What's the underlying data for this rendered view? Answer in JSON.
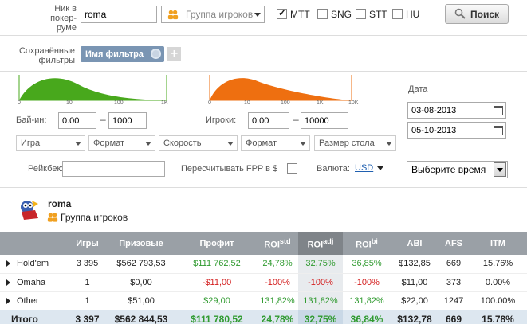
{
  "filters": {
    "nick_label": "Ник в покер-руме",
    "nick_value": "roma",
    "group_placeholder": "Группа игроков",
    "checkboxes": [
      {
        "label": "MTT",
        "checked": true
      },
      {
        "label": "SNG",
        "checked": false
      },
      {
        "label": "STT",
        "checked": false
      },
      {
        "label": "HU",
        "checked": false
      }
    ],
    "search_label": "Поиск"
  },
  "saved": {
    "label": "Сохранённые фильтры",
    "tag": "Имя фильтра",
    "add": "+"
  },
  "buyin": {
    "ticks": [
      "0",
      "10",
      "100",
      "1K"
    ],
    "label": "Бай-ин:",
    "from": "0.00",
    "to": "1000",
    "color": "#48a81c"
  },
  "players": {
    "ticks": [
      "0",
      "10",
      "100",
      "1K",
      "10K"
    ],
    "label": "Игроки:",
    "from": "0.00",
    "to": "10000",
    "color": "#ee6f10"
  },
  "dropdowns": [
    "Игра",
    "Формат",
    "Скорость",
    "Формат",
    "Размер стола"
  ],
  "rakeback_label": "Рейкбек:",
  "fpp_label": "Пересчитывать FPP в $",
  "currency_label": "Валюта:",
  "currency_value": "USD",
  "date": {
    "label": "Дата",
    "from": "03-08-2013",
    "to": "05-10-2013",
    "time_select": "Выберите время"
  },
  "player": {
    "name": "roma",
    "group": "Группа игроков"
  },
  "table": {
    "headers": [
      "",
      "Игры",
      "Призовые",
      "Профит",
      "ROIstd",
      "ROIadj",
      "ROIbi",
      "ABI",
      "AFS",
      "ITM"
    ],
    "header_main": [
      "",
      "Игры",
      "Призовые",
      "Профит",
      "ROI",
      "ROI",
      "ROI",
      "ABI",
      "AFS",
      "ITM"
    ],
    "header_sup": [
      "",
      "",
      "",
      "",
      "std",
      "adj",
      "bi",
      "",
      "",
      ""
    ],
    "rows": [
      {
        "name": "Hold'em",
        "games": "3 395",
        "prize": "$562 793,53",
        "profit": "$111 762,52",
        "roistd": "24,78%",
        "roiadj": "32,75%",
        "roibi": "36,85%",
        "abi": "$132,85",
        "afs": "669",
        "itm": "15.76%",
        "sign": "pos"
      },
      {
        "name": "Omaha",
        "games": "1",
        "prize": "$0,00",
        "profit": "-$11,00",
        "roistd": "-100%",
        "roiadj": "-100%",
        "roibi": "-100%",
        "abi": "$11,00",
        "afs": "373",
        "itm": "0.00%",
        "sign": "neg"
      },
      {
        "name": "Other",
        "games": "1",
        "prize": "$51,00",
        "profit": "$29,00",
        "roistd": "131,82%",
        "roiadj": "131,82%",
        "roibi": "131,82%",
        "abi": "$22,00",
        "afs": "1247",
        "itm": "100.00%",
        "sign": "pos"
      }
    ],
    "total": {
      "name": "Итого",
      "games": "3 397",
      "prize": "$562 844,53",
      "profit": "$111 780,52",
      "roistd": "24,78%",
      "roiadj": "32,75%",
      "roibi": "36,84%",
      "abi": "$132,78",
      "afs": "669",
      "itm": "15.78%"
    }
  }
}
